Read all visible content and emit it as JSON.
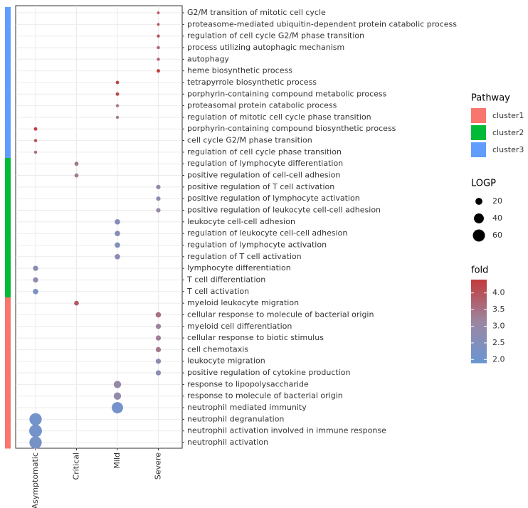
{
  "chart_data": {
    "type": "dot",
    "categories": [
      "Asymptomatic",
      "Critical",
      "Mild",
      "Severe"
    ],
    "terms": [
      "G2/M transition of mitotic cell cycle",
      "proteasome-mediated ubiquitin-dependent protein catabolic process",
      "regulation of cell cycle G2/M phase transition",
      "process utilizing autophagic mechanism",
      "autophagy",
      "heme biosynthetic process",
      "tetrapyrrole biosynthetic process",
      "porphyrin-containing compound metabolic process",
      "proteasomal protein catabolic process",
      "regulation of mitotic cell cycle phase transition",
      "porphyrin-containing compound biosynthetic process",
      "cell cycle G2/M phase transition",
      "regulation of cell cycle phase transition",
      "regulation of lymphocyte differentiation",
      "positive regulation of cell-cell adhesion",
      "positive regulation of T cell activation",
      "positive regulation of lymphocyte activation",
      "positive regulation of leukocyte cell-cell adhesion",
      "leukocyte cell-cell adhesion",
      "regulation of leukocyte cell-cell adhesion",
      "regulation of lymphocyte activation",
      "regulation of T cell activation",
      "lymphocyte differentiation",
      "T cell differentiation",
      "T cell activation",
      "myeloid leukocyte migration",
      "cellular response to molecule of bacterial origin",
      "myeloid cell differentiation",
      "cellular response to biotic stimulus",
      "cell chemotaxis",
      "leukocyte migration",
      "positive regulation of cytokine production",
      "response to lipopolysaccharide",
      "response to molecule of bacterial origin",
      "neutrophil mediated immunity",
      "neutrophil degranulation",
      "neutrophil activation involved in immune response",
      "neutrophil activation"
    ],
    "group": [
      "Severe",
      "Severe",
      "Severe",
      "Severe",
      "Severe",
      "Severe",
      "Mild",
      "Mild",
      "Mild",
      "Mild",
      "Asymptomatic",
      "Asymptomatic",
      "Asymptomatic",
      "Critical",
      "Critical",
      "Severe",
      "Severe",
      "Severe",
      "Mild",
      "Mild",
      "Mild",
      "Mild",
      "Asymptomatic",
      "Asymptomatic",
      "Asymptomatic",
      "Critical",
      "Severe",
      "Severe",
      "Severe",
      "Severe",
      "Severe",
      "Severe",
      "Mild",
      "Mild",
      "Mild",
      "Asymptomatic",
      "Asymptomatic",
      "Asymptomatic"
    ],
    "cluster": [
      "cluster3",
      "cluster3",
      "cluster3",
      "cluster3",
      "cluster3",
      "cluster3",
      "cluster3",
      "cluster3",
      "cluster3",
      "cluster3",
      "cluster3",
      "cluster3",
      "cluster3",
      "cluster2",
      "cluster2",
      "cluster2",
      "cluster2",
      "cluster2",
      "cluster2",
      "cluster2",
      "cluster2",
      "cluster2",
      "cluster2",
      "cluster2",
      "cluster2",
      "cluster1",
      "cluster1",
      "cluster1",
      "cluster1",
      "cluster1",
      "cluster1",
      "cluster1",
      "cluster1",
      "cluster1",
      "cluster1",
      "cluster1",
      "cluster1",
      "cluster1"
    ],
    "logp": [
      3,
      3,
      4,
      4,
      4,
      5,
      5,
      5,
      4,
      4,
      5,
      4,
      4,
      7,
      7,
      8,
      8,
      8,
      12,
      12,
      12,
      12,
      11,
      11,
      12,
      9,
      12,
      11,
      11,
      11,
      11,
      11,
      22,
      22,
      52,
      62,
      66,
      62
    ],
    "fold": [
      4.0,
      4.0,
      3.9,
      3.7,
      3.7,
      4.3,
      4.2,
      4.2,
      3.4,
      3.3,
      4.3,
      4.1,
      3.6,
      3.4,
      3.3,
      3.0,
      2.7,
      3.0,
      2.6,
      2.6,
      2.5,
      2.7,
      2.7,
      2.8,
      2.3,
      3.9,
      3.5,
      3.2,
      3.3,
      3.4,
      2.7,
      2.7,
      3.0,
      2.9,
      2.1,
      2.1,
      2.1,
      2.2
    ],
    "pathway_title": "Pathway",
    "clusters": [
      "cluster1",
      "cluster2",
      "cluster3"
    ],
    "cluster_colors": [
      "#f8766d",
      "#00ba38",
      "#619cff"
    ],
    "size_title": "LOGP",
    "size_breaks": [
      20,
      40,
      60
    ],
    "color_title": "fold",
    "color_lim": [
      1.9,
      4.4
    ],
    "color_ticks": [
      {
        "value": 2,
        "label": "2.0"
      },
      2.5,
      {
        "value": 3,
        "label": "3.0"
      },
      3.5,
      {
        "value": 4,
        "label": "4.0"
      }
    ],
    "color_scale": [
      "#6b96d2",
      "#9c86a1",
      "#c23b3b"
    ],
    "grid": true
  }
}
